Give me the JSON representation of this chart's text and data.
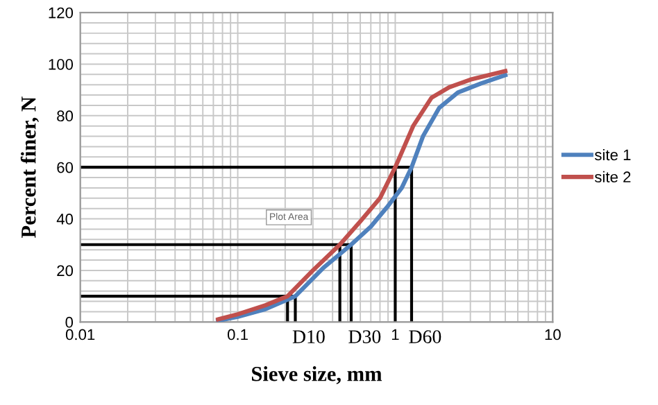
{
  "chart_data": {
    "type": "line",
    "xlabel": "Sieve size, mm",
    "ylabel": "Percent finer, N",
    "log": "x",
    "xlim": [
      0.01,
      10
    ],
    "xticks": [
      0.01,
      0.1,
      1,
      10
    ],
    "ylim": [
      0,
      120
    ],
    "yticks": [
      0,
      20,
      40,
      60,
      80,
      100,
      120
    ],
    "grid": true,
    "legend": "right",
    "line_style": "solid",
    "marker": "none",
    "series": [
      {
        "name": "site 1",
        "color": "#4f81bd",
        "x": [
          0.075,
          0.1,
          0.15,
          0.232,
          0.35,
          0.525,
          0.7,
          0.9,
          1.1,
          1.27,
          1.5,
          1.9,
          2.5,
          3.5,
          5
        ],
        "values": [
          0.5,
          2,
          5,
          10,
          21,
          30,
          37,
          45,
          52,
          60,
          72,
          83,
          89,
          92.5,
          95.7
        ]
      },
      {
        "name": "site 2",
        "color": "#c0504d",
        "x": [
          0.075,
          0.1,
          0.15,
          0.207,
          0.3,
          0.445,
          0.6,
          0.8,
          1.0,
          1.3,
          1.7,
          2.2,
          3,
          5
        ],
        "values": [
          1,
          3,
          6.5,
          10,
          20,
          30,
          39,
          48,
          60,
          76,
          87,
          91,
          94,
          97.3
        ]
      },
      {
        "color": "#000000",
        "x": [
          0.01,
          0.232,
          0.232
        ],
        "values": [
          10,
          10,
          0
        ]
      },
      {
        "color": "#000000",
        "x": [
          0.207,
          0.207
        ],
        "values": [
          10,
          0
        ]
      },
      {
        "color": "#000000",
        "x": [
          0.01,
          0.525,
          0.525
        ],
        "values": [
          30,
          30,
          0
        ]
      },
      {
        "color": "#000000",
        "x": [
          0.445,
          0.445
        ],
        "values": [
          30,
          0
        ]
      },
      {
        "color": "#000000",
        "x": [
          0.01,
          1.27,
          1.27
        ],
        "values": [
          60,
          60,
          0
        ]
      },
      {
        "color": "#000000",
        "x": [
          1.0,
          1.0
        ],
        "values": [
          60,
          0
        ]
      }
    ],
    "annotations": [
      {
        "text": "D10",
        "x": 0.232,
        "y": 0
      },
      {
        "text": "D30",
        "x": 0.525,
        "y": 0
      },
      {
        "text": "D60",
        "x": 1.27,
        "y": 0
      },
      "Plot Area"
    ]
  }
}
